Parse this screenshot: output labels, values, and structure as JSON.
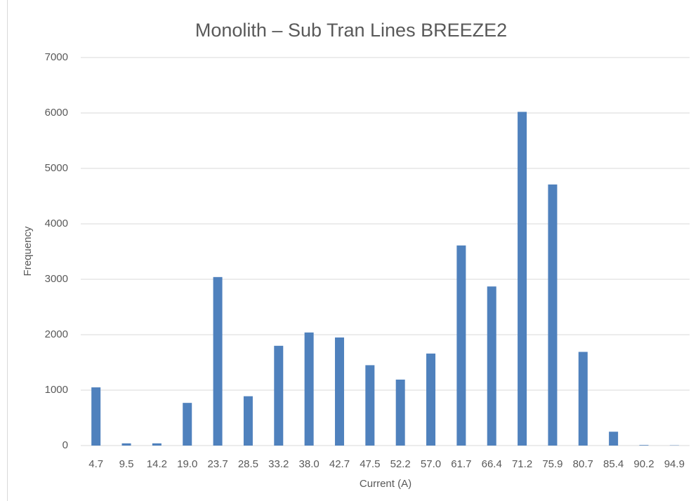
{
  "chart_data": {
    "type": "bar",
    "title": "Monolith – Sub Tran Lines BREEZE2",
    "x_label": "Current  (A)",
    "y_label": "Frequency",
    "categories": [
      "4.7",
      "9.5",
      "14.2",
      "19.0",
      "23.7",
      "28.5",
      "33.2",
      "38.0",
      "42.7",
      "47.5",
      "52.2",
      "57.0",
      "61.7",
      "66.4",
      "71.2",
      "75.9",
      "80.7",
      "85.4",
      "90.2",
      "94.9"
    ],
    "values": [
      1050,
      40,
      40,
      770,
      3040,
      890,
      1800,
      2040,
      1950,
      1450,
      1190,
      1660,
      3610,
      2870,
      6020,
      4710,
      1690,
      250,
      10,
      5
    ],
    "color": "#4f81bd",
    "ylim": [
      0,
      7000
    ],
    "yticks": [
      0,
      1000,
      2000,
      3000,
      4000,
      5000,
      6000,
      7000
    ],
    "grid": true
  }
}
